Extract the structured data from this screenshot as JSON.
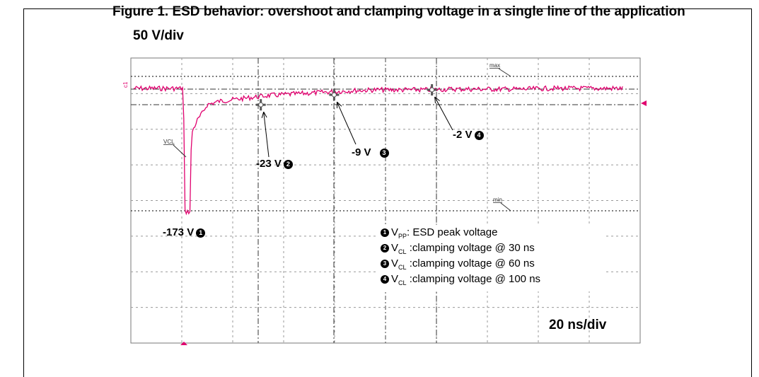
{
  "heading": "Figure 1. ESD behavior: overshoot and clamping voltage in a single line of the application",
  "chart_data": {
    "type": "line",
    "title": "",
    "y_scale": "50 V/div",
    "x_scale": "20 ns/div",
    "grid": true,
    "x_divisions": 10,
    "y_divisions": 8,
    "trace_color": "#e0006e",
    "trace_label": "VCL",
    "x_unit": "ns",
    "y_unit": "V",
    "series": [
      {
        "x": [
          0,
          5,
          10,
          15,
          20,
          22,
          24,
          26,
          28,
          30,
          35,
          40,
          45,
          50,
          55,
          60,
          70,
          80,
          90,
          100,
          110,
          120,
          130,
          140,
          150,
          160,
          170,
          180,
          190,
          200
        ],
        "y": [
          0,
          0,
          0,
          0,
          0,
          -173,
          -60,
          -45,
          -35,
          -23,
          -18,
          -16,
          -14,
          -12,
          -10,
          -9,
          -7,
          -5,
          -3,
          -2,
          -2,
          -2,
          -1,
          -1,
          -1,
          -1,
          0,
          0,
          0,
          0
        ]
      }
    ],
    "markers": [
      {
        "number": "1",
        "label": "-173 V",
        "x": 22,
        "y": -173
      },
      {
        "number": "2",
        "label": "-23 V",
        "x": 52,
        "y": -23
      },
      {
        "number": "3",
        "label": "-9 V",
        "x": 82,
        "y": -9
      },
      {
        "number": "4",
        "label": "-2 V",
        "x": 122,
        "y": -2
      }
    ],
    "cursor_labels": {
      "max": "max",
      "min": "min",
      "ch": "c1"
    },
    "legend": [
      {
        "number": "1",
        "symbol": "V",
        "sub": "PP",
        "text": ": ESD peak voltage"
      },
      {
        "number": "2",
        "symbol": "V",
        "sub": "CL",
        "text": " :clamping voltage @ 30 ns"
      },
      {
        "number": "3",
        "symbol": "V",
        "sub": "CL",
        "text": " :clamping voltage @ 60 ns"
      },
      {
        "number": "4",
        "symbol": "V",
        "sub": "CL",
        "text": " :clamping voltage @ 100 ns"
      }
    ]
  }
}
